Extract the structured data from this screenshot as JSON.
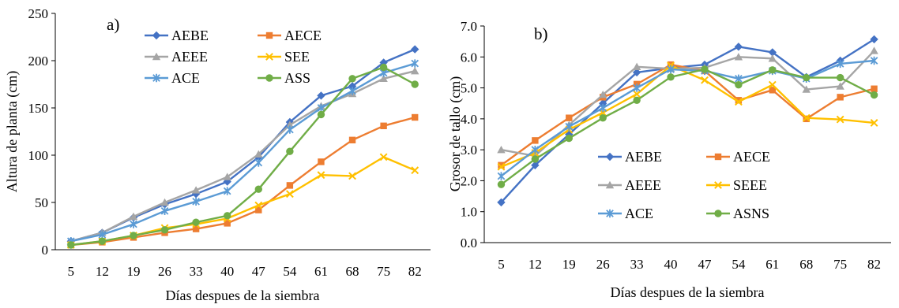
{
  "chart_data": [
    {
      "type": "line",
      "panel_label": "a)",
      "xlabel": "Días despues de la siembra",
      "ylabel": "Altura de planta (cm)",
      "ylim": [
        0,
        250
      ],
      "yticks": [
        "0",
        "50",
        "100",
        "150",
        "200",
        "250"
      ],
      "categories": [
        "5",
        "12",
        "19",
        "26",
        "33",
        "40",
        "47",
        "54",
        "61",
        "68",
        "75",
        "82"
      ],
      "legend_position": "top-left (inside, two columns)",
      "grid": false,
      "series": [
        {
          "name": "AEBE",
          "color": "#4472C4",
          "marker": "diamond",
          "values": [
            9,
            18,
            34,
            48,
            59,
            72,
            98,
            135,
            163,
            173,
            198,
            212
          ]
        },
        {
          "name": "AECE",
          "color": "#ED7D31",
          "marker": "square",
          "values": [
            5,
            8,
            13,
            18,
            22,
            28,
            42,
            68,
            93,
            116,
            131,
            140
          ]
        },
        {
          "name": "AEEE",
          "color": "#A5A5A5",
          "marker": "triangle",
          "values": [
            9,
            18,
            35,
            50,
            63,
            77,
            101,
            132,
            152,
            165,
            181,
            189
          ]
        },
        {
          "name": "SEE",
          "color": "#FFC000",
          "marker": "x",
          "values": [
            5,
            9,
            15,
            23,
            27,
            33,
            47,
            59,
            79,
            78,
            98,
            84
          ]
        },
        {
          "name": "ACE",
          "color": "#5B9BD5",
          "marker": "star",
          "values": [
            9,
            16,
            27,
            41,
            51,
            62,
            92,
            127,
            150,
            168,
            187,
            197
          ]
        },
        {
          "name": "ASS",
          "color": "#70AD47",
          "marker": "circle",
          "values": [
            5,
            9,
            15,
            21,
            29,
            36,
            64,
            104,
            143,
            181,
            193,
            175
          ]
        }
      ]
    },
    {
      "type": "line",
      "panel_label": "b)",
      "xlabel": "Días despues de la siembra",
      "ylabel": "Grosor de tallo (cm)",
      "ylim": [
        0,
        7
      ],
      "yticks": [
        "0.0",
        "1.0",
        "2.0",
        "3.0",
        "4.0",
        "5.0",
        "6.0",
        "7.0"
      ],
      "categories": [
        "5",
        "12",
        "19",
        "26",
        "33",
        "40",
        "47",
        "54",
        "61",
        "68",
        "75",
        "82"
      ],
      "legend_position": "center-left (inside, two columns)",
      "grid": false,
      "series": [
        {
          "name": "AEBE",
          "color": "#4472C4",
          "marker": "diamond",
          "values": [
            1.3,
            2.5,
            3.5,
            4.5,
            5.5,
            5.65,
            5.75,
            6.33,
            6.15,
            5.35,
            5.88,
            6.57
          ]
        },
        {
          "name": "AECE",
          "color": "#ED7D31",
          "marker": "square",
          "values": [
            2.5,
            3.3,
            4.03,
            4.7,
            5.12,
            5.75,
            5.55,
            4.6,
            4.93,
            4.0,
            4.7,
            4.97
          ]
        },
        {
          "name": "AEEE",
          "color": "#A5A5A5",
          "marker": "triangle",
          "values": [
            3.0,
            2.8,
            3.8,
            4.78,
            5.68,
            5.62,
            5.65,
            6.0,
            5.95,
            4.95,
            5.05,
            6.2
          ]
        },
        {
          "name": "SEEE",
          "color": "#FFC000",
          "marker": "x",
          "values": [
            2.45,
            2.9,
            3.65,
            4.2,
            4.8,
            5.72,
            5.25,
            4.55,
            5.1,
            4.03,
            3.98,
            3.87
          ]
        },
        {
          "name": "ACE",
          "color": "#5B9BD5",
          "marker": "star",
          "values": [
            2.15,
            3.0,
            3.75,
            4.35,
            5.0,
            5.6,
            5.55,
            5.3,
            5.55,
            5.3,
            5.78,
            5.88
          ]
        },
        {
          "name": "ASNS",
          "color": "#70AD47",
          "marker": "circle",
          "values": [
            1.88,
            2.7,
            3.37,
            4.03,
            4.6,
            5.35,
            5.6,
            5.1,
            5.58,
            5.33,
            5.33,
            4.77
          ]
        }
      ]
    }
  ]
}
